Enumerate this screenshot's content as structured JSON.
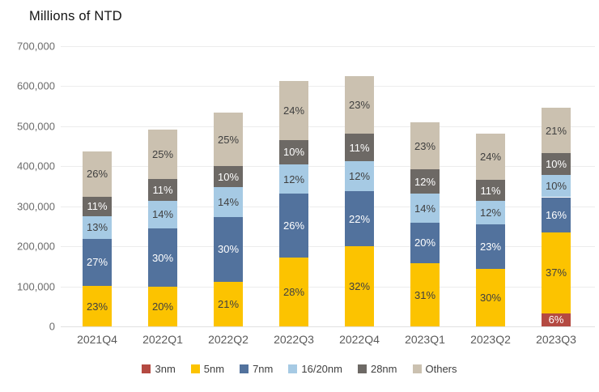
{
  "title": "Millions of NTD",
  "chart_data": {
    "type": "bar",
    "stacked": true,
    "title": "Millions of NTD",
    "xlabel": "",
    "ylabel": "Millions of NTD",
    "categories": [
      "2021Q4",
      "2022Q1",
      "2022Q2",
      "2022Q3",
      "2022Q4",
      "2023Q1",
      "2023Q2",
      "2023Q3"
    ],
    "totals_millions_ntd": [
      438000,
      491000,
      534000,
      613000,
      625000,
      509000,
      481000,
      547000
    ],
    "series": [
      {
        "name": "3nm",
        "color": "#b44a42",
        "label_color": "#ffffff",
        "percents": [
          0,
          0,
          0,
          0,
          0,
          0,
          0,
          6
        ]
      },
      {
        "name": "5nm",
        "color": "#fcc300",
        "label_color": "#404040",
        "percents": [
          23,
          20,
          21,
          28,
          32,
          31,
          30,
          37
        ]
      },
      {
        "name": "7nm",
        "color": "#52729d",
        "label_color": "#ffffff",
        "percents": [
          27,
          30,
          30,
          26,
          22,
          20,
          23,
          16
        ]
      },
      {
        "name": "16/20nm",
        "color": "#a6cae4",
        "label_color": "#404040",
        "percents": [
          13,
          14,
          14,
          12,
          12,
          14,
          12,
          10
        ]
      },
      {
        "name": "28nm",
        "color": "#6d6965",
        "label_color": "#ffffff",
        "percents": [
          11,
          11,
          10,
          10,
          11,
          12,
          11,
          10
        ]
      },
      {
        "name": "Others",
        "color": "#cbc1b0",
        "label_color": "#404040",
        "percents": [
          26,
          25,
          25,
          24,
          23,
          23,
          24,
          21
        ]
      }
    ],
    "segment_label_format": "{value}%",
    "y_axis": {
      "min": 0,
      "max": 700000,
      "tick_labels": [
        "700,000",
        "600,000",
        "500,000",
        "400,000",
        "300,000",
        "200,000",
        "100,000",
        "0"
      ]
    },
    "grid": true,
    "legend_position": "bottom"
  }
}
